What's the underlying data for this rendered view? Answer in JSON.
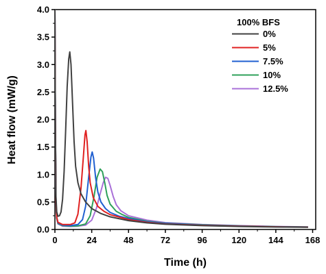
{
  "chart_data": {
    "type": "line",
    "xlabel": "Time (h)",
    "ylabel": "Heat flow (mW/g)",
    "xlim": [
      0,
      170
    ],
    "ylim": [
      0,
      4.0
    ],
    "xticks": [
      0,
      24,
      48,
      72,
      96,
      120,
      144,
      168
    ],
    "yticks": [
      0.0,
      0.5,
      1.0,
      1.5,
      2.0,
      2.5,
      3.0,
      3.5,
      4.0
    ],
    "xtick_labels": [
      "0",
      "24",
      "48",
      "72",
      "96",
      "120",
      "144",
      "168"
    ],
    "ytick_labels": [
      "0.0",
      "0.5",
      "1.0",
      "1.5",
      "2.0",
      "2.5",
      "3.0",
      "3.5",
      "4.0"
    ],
    "legend_title": "100% BFS",
    "legend_position": "top-right",
    "grid": false,
    "series": [
      {
        "name": "0%",
        "color": "#404040",
        "points": [
          [
            0,
            4.0
          ],
          [
            0.3,
            2.0
          ],
          [
            0.7,
            0.6
          ],
          [
            1.2,
            0.32
          ],
          [
            2,
            0.24
          ],
          [
            3,
            0.25
          ],
          [
            4,
            0.32
          ],
          [
            5,
            0.55
          ],
          [
            6,
            1.05
          ],
          [
            7,
            1.8
          ],
          [
            8,
            2.6
          ],
          [
            9,
            3.1
          ],
          [
            9.7,
            3.23
          ],
          [
            10.5,
            3.0
          ],
          [
            11.5,
            2.3
          ],
          [
            12.5,
            1.6
          ],
          [
            13.5,
            1.15
          ],
          [
            15,
            0.85
          ],
          [
            17,
            0.65
          ],
          [
            20,
            0.5
          ],
          [
            24,
            0.38
          ],
          [
            30,
            0.29
          ],
          [
            36,
            0.23
          ],
          [
            48,
            0.16
          ],
          [
            60,
            0.12
          ],
          [
            72,
            0.095
          ],
          [
            96,
            0.07
          ],
          [
            120,
            0.055
          ],
          [
            144,
            0.045
          ],
          [
            165,
            0.04
          ]
        ]
      },
      {
        "name": "5%",
        "color": "#e02020",
        "points": [
          [
            0,
            4.0
          ],
          [
            0.3,
            2.0
          ],
          [
            0.7,
            0.5
          ],
          [
            1.2,
            0.22
          ],
          [
            2,
            0.13
          ],
          [
            5,
            0.09
          ],
          [
            10,
            0.09
          ],
          [
            13,
            0.12
          ],
          [
            15,
            0.28
          ],
          [
            17,
            0.75
          ],
          [
            18.5,
            1.3
          ],
          [
            19.6,
            1.72
          ],
          [
            20.2,
            1.8
          ],
          [
            21,
            1.6
          ],
          [
            22,
            1.15
          ],
          [
            23,
            0.85
          ],
          [
            25,
            0.58
          ],
          [
            28,
            0.42
          ],
          [
            32,
            0.33
          ],
          [
            36,
            0.27
          ],
          [
            48,
            0.18
          ],
          [
            60,
            0.13
          ],
          [
            72,
            0.1
          ],
          [
            96,
            0.075
          ],
          [
            120,
            0.06
          ],
          [
            144,
            0.048
          ],
          [
            165,
            0.042
          ]
        ]
      },
      {
        "name": "7.5%",
        "color": "#1f5fd0",
        "points": [
          [
            0,
            4.0
          ],
          [
            0.3,
            2.0
          ],
          [
            0.7,
            0.5
          ],
          [
            1.2,
            0.22
          ],
          [
            2,
            0.12
          ],
          [
            5,
            0.08
          ],
          [
            10,
            0.07
          ],
          [
            15,
            0.09
          ],
          [
            18,
            0.18
          ],
          [
            20,
            0.42
          ],
          [
            22,
            0.95
          ],
          [
            23.5,
            1.32
          ],
          [
            24.3,
            1.41
          ],
          [
            25.2,
            1.3
          ],
          [
            26.5,
            0.95
          ],
          [
            28,
            0.68
          ],
          [
            30,
            0.5
          ],
          [
            33,
            0.38
          ],
          [
            36,
            0.31
          ],
          [
            42,
            0.24
          ],
          [
            48,
            0.2
          ],
          [
            60,
            0.14
          ],
          [
            72,
            0.11
          ],
          [
            96,
            0.08
          ],
          [
            120,
            0.063
          ],
          [
            144,
            0.05
          ],
          [
            165,
            0.043
          ]
        ]
      },
      {
        "name": "10%",
        "color": "#2ea05a",
        "points": [
          [
            0,
            4.0
          ],
          [
            0.3,
            2.0
          ],
          [
            0.7,
            0.5
          ],
          [
            1.2,
            0.2
          ],
          [
            2,
            0.11
          ],
          [
            5,
            0.07
          ],
          [
            10,
            0.06
          ],
          [
            15,
            0.065
          ],
          [
            20,
            0.1
          ],
          [
            23,
            0.25
          ],
          [
            25.5,
            0.6
          ],
          [
            27.5,
            0.95
          ],
          [
            29.5,
            1.1
          ],
          [
            31,
            1.05
          ],
          [
            32.5,
            0.85
          ],
          [
            34,
            0.62
          ],
          [
            36,
            0.46
          ],
          [
            40,
            0.33
          ],
          [
            44,
            0.27
          ],
          [
            48,
            0.22
          ],
          [
            60,
            0.15
          ],
          [
            72,
            0.115
          ],
          [
            96,
            0.085
          ],
          [
            120,
            0.065
          ],
          [
            144,
            0.052
          ],
          [
            165,
            0.045
          ]
        ]
      },
      {
        "name": "12.5%",
        "color": "#a970d8",
        "points": [
          [
            0,
            4.0
          ],
          [
            0.3,
            2.0
          ],
          [
            0.7,
            0.5
          ],
          [
            1.2,
            0.2
          ],
          [
            2,
            0.1
          ],
          [
            5,
            0.06
          ],
          [
            10,
            0.055
          ],
          [
            15,
            0.06
          ],
          [
            20,
            0.08
          ],
          [
            24,
            0.17
          ],
          [
            27,
            0.38
          ],
          [
            29.5,
            0.65
          ],
          [
            31.5,
            0.85
          ],
          [
            33,
            0.95
          ],
          [
            34.5,
            0.93
          ],
          [
            36,
            0.8
          ],
          [
            38,
            0.6
          ],
          [
            40,
            0.45
          ],
          [
            43,
            0.34
          ],
          [
            48,
            0.25
          ],
          [
            60,
            0.17
          ],
          [
            72,
            0.125
          ],
          [
            96,
            0.09
          ],
          [
            120,
            0.07
          ],
          [
            144,
            0.055
          ],
          [
            165,
            0.047
          ]
        ]
      }
    ]
  }
}
